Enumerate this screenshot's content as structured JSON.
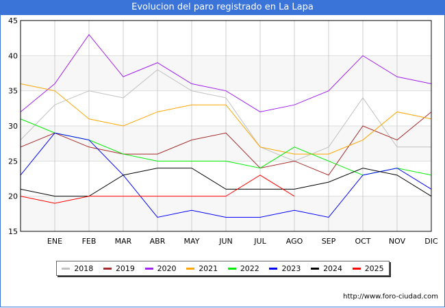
{
  "title": "Evolucion del paro registrado en La Lapa",
  "credit": "http://www.foro-ciudad.com",
  "chart_data": {
    "type": "line",
    "title": "Evolucion del paro registrado en La Lapa",
    "xlabel": "",
    "ylabel": "",
    "ylim": [
      15,
      45
    ],
    "yticks": [
      15,
      20,
      25,
      30,
      35,
      40,
      45
    ],
    "categories": [
      "",
      "ENE",
      "FEB",
      "MAR",
      "ABR",
      "MAY",
      "JUN",
      "JUL",
      "AGO",
      "SEP",
      "OCT",
      "NOV",
      "DIC"
    ],
    "grid": true,
    "legend_position": "bottom",
    "series": [
      {
        "name": "2018",
        "color": "#c0c0c0",
        "values": [
          28,
          33,
          35,
          34,
          38,
          35,
          34,
          27,
          25,
          27,
          34,
          27,
          27
        ]
      },
      {
        "name": "2019",
        "color": "#a52a2a",
        "values": [
          27,
          29,
          27,
          26,
          26,
          28,
          29,
          24,
          25,
          23,
          30,
          28,
          32
        ]
      },
      {
        "name": "2020",
        "color": "#a020f0",
        "values": [
          32,
          36,
          43,
          37,
          39,
          36,
          35,
          32,
          33,
          35,
          40,
          37,
          36
        ]
      },
      {
        "name": "2021",
        "color": "#ffa500",
        "values": [
          36,
          35,
          31,
          30,
          32,
          33,
          33,
          27,
          26,
          26,
          28,
          32,
          31
        ]
      },
      {
        "name": "2022",
        "color": "#00ee00",
        "values": [
          31,
          29,
          28,
          26,
          25,
          25,
          25,
          24,
          27,
          25,
          23,
          24,
          23
        ]
      },
      {
        "name": "2023",
        "color": "#0000ff",
        "values": [
          23,
          29,
          28,
          23,
          17,
          18,
          17,
          17,
          18,
          17,
          23,
          24,
          21
        ]
      },
      {
        "name": "2024",
        "color": "#000000",
        "values": [
          21,
          20,
          20,
          23,
          24,
          24,
          21,
          21,
          21,
          22,
          24,
          23,
          20
        ]
      },
      {
        "name": "2025",
        "color": "#ff0000",
        "values": [
          20,
          19,
          20,
          20,
          20,
          20,
          20,
          23,
          20
        ]
      }
    ]
  }
}
